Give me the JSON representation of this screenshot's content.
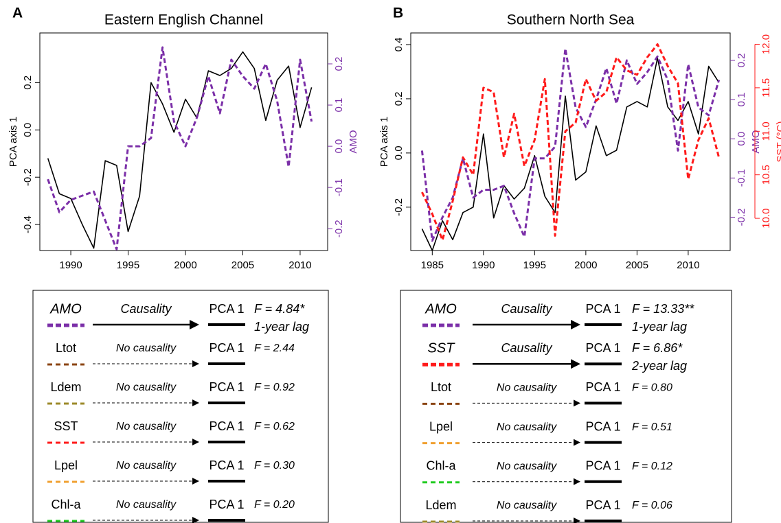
{
  "chart_data": [
    {
      "type": "line",
      "panel_label": "A",
      "title": "Eastern English Channel",
      "ylabel": "PCA axis 1",
      "y2label": "AMO",
      "x": [
        1988,
        1989,
        1990,
        1991,
        1992,
        1993,
        1994,
        1995,
        1996,
        1997,
        1998,
        1999,
        2000,
        2001,
        2002,
        2003,
        2004,
        2005,
        2006,
        2007,
        2008,
        2009,
        2010,
        2011
      ],
      "series": [
        {
          "color": "#000000",
          "axis": "y",
          "dash": false,
          "values": [
            -0.12,
            -0.27,
            -0.29,
            -0.4,
            -0.5,
            -0.13,
            -0.15,
            -0.43,
            -0.28,
            0.2,
            0.11,
            -0.01,
            0.13,
            0.05,
            0.25,
            0.23,
            0.26,
            0.33,
            0.26,
            0.04,
            0.21,
            0.27,
            0.01,
            0.18
          ]
        },
        {
          "color": "#7b2fa8",
          "axis": "y2",
          "dash": true,
          "values": [
            -0.08,
            -0.16,
            -0.13,
            -0.12,
            -0.11,
            -0.18,
            -0.25,
            0,
            0,
            0.02,
            0.24,
            0.06,
            0,
            0.07,
            0.17,
            0.08,
            0.21,
            0.17,
            0.14,
            0.2,
            0.11,
            -0.05,
            0.21,
            0.06
          ]
        }
      ],
      "xlim": [
        1987.3,
        2012.4
      ],
      "xticks": [
        1990,
        1995,
        2000,
        2005,
        2010
      ],
      "ylim": [
        -0.51,
        0.41
      ],
      "yticks": [
        -0.4,
        -0.2,
        {
          "value": 0,
          "label": "0.0"
        },
        0.2
      ],
      "y2lim": [
        -0.253,
        0.275
      ],
      "y2ticks": [
        -0.2,
        -0.1,
        {
          "value": 0,
          "label": "0.0"
        },
        0.1,
        0.2
      ]
    },
    {
      "type": "line",
      "panel_label": "B",
      "title": "Southern North Sea",
      "ylabel": "PCA axis 1",
      "y2label": "AMO",
      "y3label": "SST (°C)",
      "x": [
        1984,
        1985,
        1986,
        1987,
        1988,
        1989,
        1990,
        1991,
        1992,
        1993,
        1994,
        1995,
        1996,
        1997,
        1998,
        1999,
        2000,
        2001,
        2002,
        2003,
        2004,
        2005,
        2006,
        2007,
        2008,
        2009,
        2010,
        2011,
        2012,
        2013
      ],
      "series": [
        {
          "color": "#000000",
          "axis": "y",
          "dash": false,
          "values": [
            -0.28,
            -0.36,
            -0.25,
            -0.32,
            -0.22,
            -0.2,
            0.07,
            -0.24,
            -0.12,
            -0.17,
            -0.13,
            -0.01,
            -0.16,
            -0.22,
            0.21,
            -0.1,
            -0.07,
            0.1,
            -0.01,
            0.01,
            0.17,
            0.19,
            0.17,
            0.35,
            0.17,
            0.12,
            0.19,
            0.07,
            0.32,
            0.26
          ]
        },
        {
          "color": "#7b2fa8",
          "axis": "y2",
          "dash": true,
          "values": [
            -0.03,
            -0.26,
            -0.2,
            -0.15,
            -0.05,
            -0.15,
            -0.13,
            -0.13,
            -0.12,
            -0.19,
            -0.25,
            -0.05,
            -0.05,
            -0.02,
            0.23,
            0.08,
            0.03,
            0.1,
            0.18,
            0.09,
            0.2,
            0.14,
            0.17,
            0.21,
            0.15,
            -0.03,
            0.19,
            0.08,
            0.06,
            0.15
          ]
        },
        {
          "color": "#ff1a1a",
          "axis": "y3",
          "dash": true,
          "values": [
            10.3,
            10.05,
            9.75,
            10.2,
            10.7,
            10.5,
            11.5,
            11.45,
            10.7,
            11.2,
            10.6,
            10.9,
            11.6,
            9.8,
            11.0,
            11.1,
            11.6,
            11.35,
            11.45,
            11.85,
            11.7,
            11.65,
            11.85,
            12.0,
            11.75,
            11.55,
            10.45,
            10.9,
            11.15,
            10.7
          ]
        }
      ],
      "xlim": [
        1982.9,
        2014.1
      ],
      "xticks": [
        1985,
        1990,
        1995,
        2000,
        2005,
        2010
      ],
      "ylim": [
        -0.36,
        0.443
      ],
      "yticks": [
        -0.2,
        {
          "value": 0,
          "label": "0.0"
        },
        0.2,
        0.4
      ],
      "y2lim": [
        -0.285,
        0.27
      ],
      "y2ticks": [
        -0.2,
        -0.1,
        {
          "value": 0,
          "label": "0.0"
        },
        0.1,
        0.2
      ],
      "y3lim": [
        9.63,
        12.13
      ],
      "y3ticks": [
        {
          "value": 10,
          "label": "10.0"
        },
        10.5,
        {
          "value": 11,
          "label": "11.0"
        },
        11.5,
        {
          "value": 12,
          "label": "12.0"
        }
      ]
    }
  ],
  "causality_tables": [
    {
      "rows": [
        {
          "variable": "AMO",
          "color": "#7b2fa8",
          "relation": "Causality",
          "arrow": "solid",
          "target": "PCA 1",
          "statistic": "F = 4.84*",
          "lag": "1-year lag"
        },
        {
          "variable": "Ltot",
          "color": "#8b4513",
          "relation": "No causality",
          "arrow": "dashed",
          "target": "PCA 1",
          "statistic": "F = 2.44"
        },
        {
          "variable": "Ldem",
          "color": "#9c8a2a",
          "relation": "No causality",
          "arrow": "dashed",
          "target": "PCA 1",
          "statistic": "F = 0.92"
        },
        {
          "variable": "SST",
          "color": "#ff1a1a",
          "relation": "No causality",
          "arrow": "dashed",
          "target": "PCA 1",
          "statistic": "F = 0.62"
        },
        {
          "variable": "Lpel",
          "color": "#f0a030",
          "relation": "No causality",
          "arrow": "dashed",
          "target": "PCA 1",
          "statistic": "F = 0.30"
        },
        {
          "variable": "Chl-a",
          "color": "#22cc22",
          "relation": "No causality",
          "arrow": "dashed",
          "target": "PCA 1",
          "statistic": "F = 0.20"
        }
      ]
    },
    {
      "rows": [
        {
          "variable": "AMO",
          "color": "#7b2fa8",
          "relation": "Causality",
          "arrow": "solid",
          "target": "PCA 1",
          "statistic": "F = 13.33**",
          "lag": "1-year lag"
        },
        {
          "variable": "SST",
          "color": "#ff1a1a",
          "relation": "Causality",
          "arrow": "solid",
          "target": "PCA 1",
          "statistic": "F = 6.86*",
          "lag": "2-year lag"
        },
        {
          "variable": "Ltot",
          "color": "#8b4513",
          "relation": "No causality",
          "arrow": "dashed",
          "target": "PCA 1",
          "statistic": "F = 0.80"
        },
        {
          "variable": "Lpel",
          "color": "#f0a030",
          "relation": "No causality",
          "arrow": "dashed",
          "target": "PCA 1",
          "statistic": "F = 0.51"
        },
        {
          "variable": "Chl-a",
          "color": "#22cc22",
          "relation": "No causality",
          "arrow": "dashed",
          "target": "PCA 1",
          "statistic": "F = 0.12"
        },
        {
          "variable": "Ldem",
          "color": "#9c8a2a",
          "relation": "No causality",
          "arrow": "dashed",
          "target": "PCA 1",
          "statistic": "F = 0.06"
        }
      ]
    }
  ]
}
